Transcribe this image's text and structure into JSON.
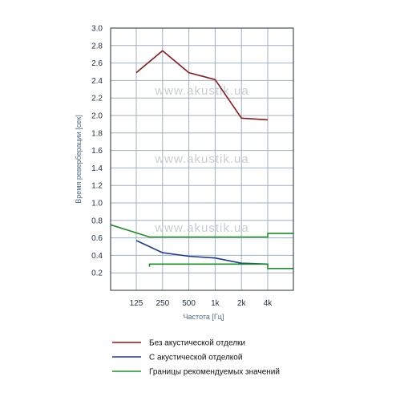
{
  "watermark": "www.akustik.ua",
  "chart_data": {
    "type": "line",
    "xlabel": "Частота [Гц]",
    "ylabel": "Время реверберации [сек]",
    "categories": [
      "125",
      "250",
      "500",
      "1k",
      "2k",
      "4k"
    ],
    "ylim": [
      0,
      3.0
    ],
    "yticks": [
      "0.2",
      "0.4",
      "0.6",
      "0.8",
      "1.0",
      "1.2",
      "1.4",
      "1.6",
      "1.8",
      "2.0",
      "2.2",
      "2.4",
      "2.6",
      "2.8",
      "3.0"
    ],
    "grid": true,
    "legend_position": "bottom",
    "series": [
      {
        "name": "Без акустической отделки",
        "color": "#8b1a1a",
        "points": [
          [
            125,
            2.49
          ],
          [
            250,
            2.74
          ],
          [
            500,
            2.49
          ],
          [
            1000,
            2.41
          ],
          [
            2000,
            1.97
          ],
          [
            4000,
            1.95
          ]
        ]
      },
      {
        "name": "С акустической отделкой",
        "color": "#1f3c96",
        "points": [
          [
            125,
            0.57
          ],
          [
            250,
            0.43
          ],
          [
            500,
            0.39
          ],
          [
            1000,
            0.37
          ],
          [
            2000,
            0.31
          ],
          [
            4000,
            0.3
          ]
        ]
      },
      {
        "name": "Границы рекомендуемых значений",
        "color": "#1f8f2a",
        "upper": [
          [
            63,
            0.75
          ],
          [
            177,
            0.61
          ],
          [
            4000,
            0.61
          ],
          [
            4000,
            0.65
          ],
          [
            8000,
            0.65
          ]
        ],
        "lower": [
          [
            177,
            0.27
          ],
          [
            177,
            0.3
          ],
          [
            4000,
            0.3
          ],
          [
            4000,
            0.25
          ],
          [
            8000,
            0.25
          ]
        ]
      }
    ]
  }
}
